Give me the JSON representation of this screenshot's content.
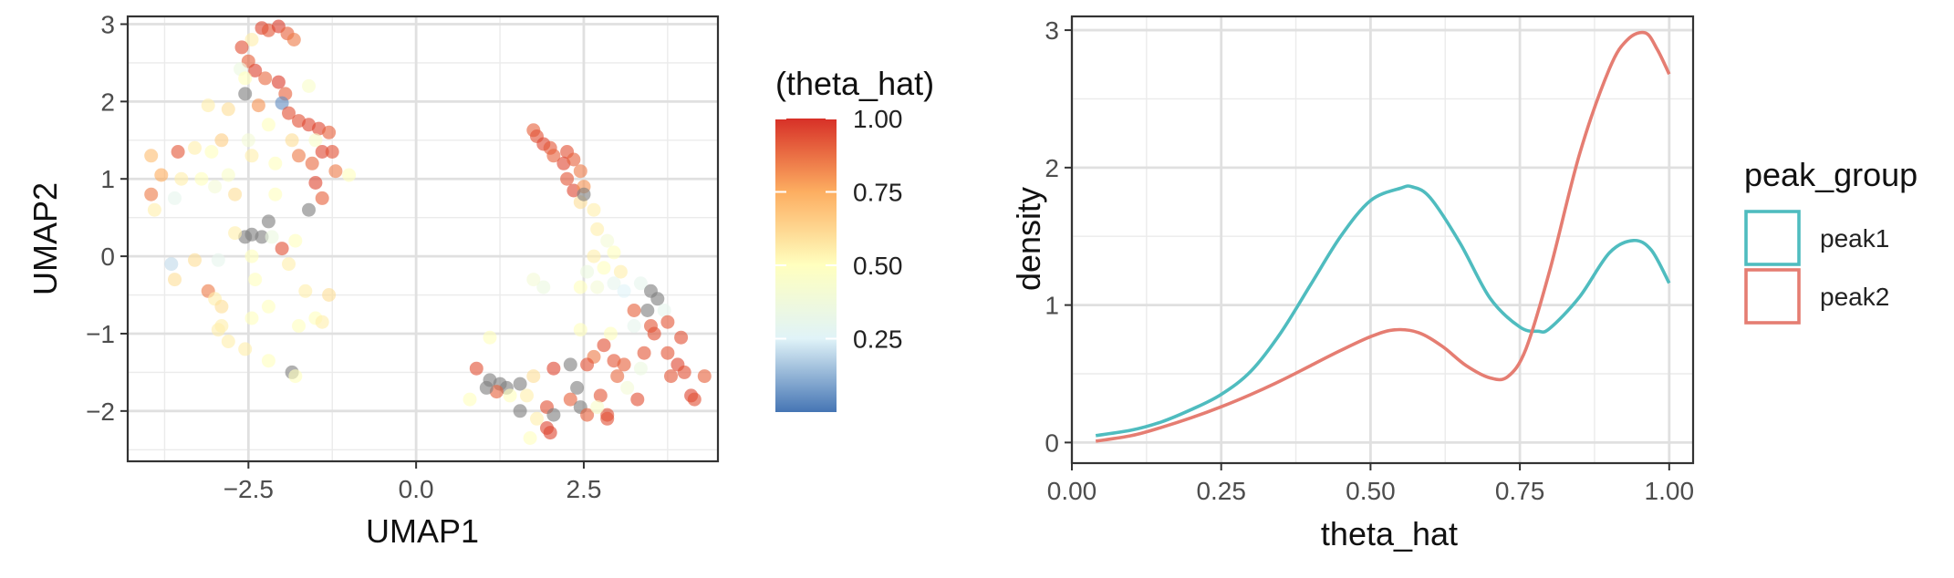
{
  "chart_data": [
    {
      "type": "scatter",
      "xlabel": "UMAP1",
      "ylabel": "UMAP2",
      "xlim": [
        -4.3,
        4.5
      ],
      "ylim": [
        -2.65,
        3.1
      ],
      "xticks": [
        -2.5,
        0.0,
        2.5
      ],
      "xtick_labels": [
        "−2.5",
        "0.0",
        "2.5"
      ],
      "yticks": [
        -2,
        -1,
        0,
        1,
        2,
        3
      ],
      "ytick_labels": [
        "−2",
        "−1",
        "0",
        "1",
        "2",
        "3"
      ],
      "grid": true,
      "legend_placement": "right",
      "colorbar": {
        "title": "(theta_hat)",
        "ticks": [
          0.25,
          0.5,
          0.75,
          1.0
        ],
        "tick_labels": [
          "0.25",
          "0.50",
          "0.75",
          "1.00"
        ],
        "range": [
          0.0,
          1.0
        ],
        "colors": [
          "#4575b4",
          "#e0f3f8",
          "#ffffbf",
          "#fdae61",
          "#d73027"
        ],
        "na_color": "#808080"
      },
      "points": [
        [
          -2.3,
          2.95,
          0.95
        ],
        [
          -2.2,
          2.92,
          0.92
        ],
        [
          -2.05,
          2.97,
          0.97
        ],
        [
          -1.92,
          2.88,
          0.9
        ],
        [
          -1.82,
          2.8,
          0.85
        ],
        [
          -2.45,
          2.8,
          0.55
        ],
        [
          -2.6,
          2.7,
          0.93
        ],
        [
          -2.5,
          2.52,
          0.9
        ],
        [
          -2.62,
          2.42,
          0.35
        ],
        [
          -2.4,
          2.4,
          0.96
        ],
        [
          -2.25,
          2.3,
          0.88
        ],
        [
          -2.55,
          2.3,
          0.5
        ],
        [
          -2.05,
          2.25,
          0.97
        ],
        [
          -1.95,
          2.1,
          0.9
        ],
        [
          -1.6,
          2.2,
          0.45
        ],
        [
          -2.55,
          2.1,
          null
        ],
        [
          -2.35,
          1.95,
          0.8
        ],
        [
          -2.0,
          1.98,
          0.05
        ],
        [
          -1.9,
          1.85,
          0.93
        ],
        [
          -1.75,
          1.75,
          0.93
        ],
        [
          -2.8,
          1.9,
          0.6
        ],
        [
          -3.1,
          1.95,
          0.55
        ],
        [
          -2.2,
          1.7,
          0.5
        ],
        [
          -1.6,
          1.7,
          0.95
        ],
        [
          -1.45,
          1.65,
          0.95
        ],
        [
          -1.3,
          1.6,
          0.9
        ],
        [
          -1.5,
          1.5,
          0.45
        ],
        [
          -1.85,
          1.5,
          0.6
        ],
        [
          -2.5,
          1.5,
          0.4
        ],
        [
          -2.9,
          1.5,
          0.65
        ],
        [
          -3.3,
          1.4,
          0.55
        ],
        [
          -3.55,
          1.35,
          0.92
        ],
        [
          -3.05,
          1.35,
          0.5
        ],
        [
          -3.95,
          1.3,
          0.7
        ],
        [
          -2.45,
          1.3,
          0.55
        ],
        [
          -1.75,
          1.3,
          0.85
        ],
        [
          -1.4,
          1.35,
          0.95
        ],
        [
          -1.25,
          1.35,
          0.93
        ],
        [
          -1.55,
          1.2,
          0.88
        ],
        [
          -2.1,
          1.2,
          0.5
        ],
        [
          -1.2,
          1.1,
          0.85
        ],
        [
          -1.0,
          1.05,
          0.5
        ],
        [
          -3.8,
          1.05,
          0.75
        ],
        [
          -3.5,
          1.0,
          0.55
        ],
        [
          -3.2,
          1.0,
          0.5
        ],
        [
          -2.8,
          1.05,
          0.45
        ],
        [
          -1.5,
          0.95,
          0.95
        ],
        [
          -3.0,
          0.9,
          0.4
        ],
        [
          -3.6,
          0.75,
          0.3
        ],
        [
          -3.95,
          0.8,
          0.85
        ],
        [
          -2.7,
          0.8,
          0.6
        ],
        [
          -1.4,
          0.75,
          0.9
        ],
        [
          -3.9,
          0.6,
          0.55
        ],
        [
          -2.1,
          0.8,
          0.5
        ],
        [
          -1.6,
          0.6,
          null
        ],
        [
          -2.2,
          0.45,
          null
        ],
        [
          -2.45,
          0.28,
          null
        ],
        [
          -2.3,
          0.25,
          null
        ],
        [
          -2.15,
          0.25,
          0.35
        ],
        [
          -2.55,
          0.25,
          null
        ],
        [
          -2.7,
          0.3,
          0.55
        ],
        [
          -1.8,
          0.2,
          0.5
        ],
        [
          -2.0,
          0.1,
          0.93
        ],
        [
          -2.45,
          0.0,
          0.5
        ],
        [
          -3.65,
          -0.1,
          0.2
        ],
        [
          -3.3,
          -0.05,
          0.6
        ],
        [
          -2.95,
          -0.05,
          0.3
        ],
        [
          -1.9,
          -0.1,
          0.55
        ],
        [
          -3.6,
          -0.3,
          0.6
        ],
        [
          -2.4,
          -0.3,
          0.5
        ],
        [
          -3.1,
          -0.45,
          0.85
        ],
        [
          -1.3,
          -0.5,
          0.6
        ],
        [
          -1.65,
          -0.45,
          0.55
        ],
        [
          -2.2,
          -0.65,
          0.5
        ],
        [
          -3.0,
          -0.55,
          0.55
        ],
        [
          -2.9,
          -0.65,
          0.6
        ],
        [
          -1.5,
          -0.8,
          0.5
        ],
        [
          -1.4,
          -0.85,
          0.55
        ],
        [
          -2.45,
          -0.8,
          0.5
        ],
        [
          -1.75,
          -0.9,
          0.5
        ],
        [
          -2.9,
          -0.9,
          0.55
        ],
        [
          -2.8,
          -1.1,
          0.55
        ],
        [
          -2.55,
          -1.2,
          0.55
        ],
        [
          -2.2,
          -1.35,
          0.5
        ],
        [
          -1.85,
          -1.5,
          null
        ],
        [
          -1.8,
          -1.55,
          0.5
        ],
        [
          -2.95,
          -0.95,
          0.55
        ],
        [
          1.75,
          1.63,
          0.9
        ],
        [
          1.8,
          1.55,
          0.93
        ],
        [
          1.9,
          1.45,
          0.95
        ],
        [
          2.0,
          1.4,
          0.92
        ],
        [
          2.05,
          1.3,
          0.9
        ],
        [
          2.25,
          1.35,
          0.93
        ],
        [
          2.2,
          1.2,
          0.95
        ],
        [
          2.35,
          1.25,
          0.9
        ],
        [
          2.45,
          1.1,
          0.85
        ],
        [
          2.25,
          1.0,
          0.92
        ],
        [
          2.35,
          0.85,
          0.95
        ],
        [
          2.5,
          0.9,
          0.8
        ],
        [
          2.45,
          0.7,
          0.6
        ],
        [
          2.5,
          0.8,
          null
        ],
        [
          2.65,
          0.6,
          0.55
        ],
        [
          2.7,
          0.35,
          0.55
        ],
        [
          2.85,
          0.2,
          0.4
        ],
        [
          2.95,
          0.05,
          0.5
        ],
        [
          2.65,
          0.0,
          0.55
        ],
        [
          2.8,
          -0.15,
          0.5
        ],
        [
          3.05,
          -0.2,
          0.55
        ],
        [
          2.55,
          -0.2,
          0.35
        ],
        [
          2.95,
          -0.35,
          0.3
        ],
        [
          3.35,
          -0.35,
          0.3
        ],
        [
          2.45,
          -0.4,
          0.5
        ],
        [
          2.7,
          -0.4,
          0.4
        ],
        [
          3.1,
          -0.45,
          0.25
        ],
        [
          3.5,
          -0.45,
          null
        ],
        [
          3.6,
          -0.55,
          null
        ],
        [
          3.45,
          -0.7,
          null
        ],
        [
          3.25,
          -0.7,
          0.9
        ],
        [
          3.7,
          -0.7,
          0.3
        ],
        [
          3.75,
          -0.85,
          0.92
        ],
        [
          3.5,
          -0.9,
          0.92
        ],
        [
          3.25,
          -0.9,
          0.3
        ],
        [
          2.45,
          -0.95,
          0.5
        ],
        [
          2.9,
          -1.0,
          0.5
        ],
        [
          3.55,
          -1.0,
          0.93
        ],
        [
          3.95,
          -1.05,
          0.93
        ],
        [
          2.8,
          -1.15,
          0.93
        ],
        [
          3.4,
          -1.25,
          0.92
        ],
        [
          3.75,
          -1.25,
          0.92
        ],
        [
          3.9,
          -1.4,
          0.95
        ],
        [
          2.65,
          -1.3,
          0.85
        ],
        [
          2.95,
          -1.35,
          0.92
        ],
        [
          3.1,
          -1.4,
          0.9
        ],
        [
          2.3,
          -1.4,
          null
        ],
        [
          2.55,
          -1.4,
          0.93
        ],
        [
          3.35,
          -1.45,
          0.35
        ],
        [
          3.8,
          -1.55,
          0.92
        ],
        [
          4.0,
          -1.5,
          0.93
        ],
        [
          4.3,
          -1.55,
          0.9
        ],
        [
          2.05,
          -1.45,
          0.95
        ],
        [
          3.0,
          -1.55,
          0.88
        ],
        [
          1.75,
          -1.55,
          0.6
        ],
        [
          1.1,
          -1.6,
          null
        ],
        [
          0.9,
          -1.45,
          0.93
        ],
        [
          1.25,
          -1.65,
          null
        ],
        [
          1.35,
          -1.7,
          null
        ],
        [
          1.55,
          -1.65,
          null
        ],
        [
          1.2,
          -1.75,
          0.9
        ],
        [
          1.4,
          -1.8,
          0.5
        ],
        [
          1.65,
          -1.8,
          0.55
        ],
        [
          1.05,
          -1.7,
          null
        ],
        [
          2.4,
          -1.7,
          null
        ],
        [
          2.3,
          -1.85,
          0.9
        ],
        [
          2.75,
          -1.8,
          0.92
        ],
        [
          3.3,
          -1.85,
          0.93
        ],
        [
          4.1,
          -1.8,
          0.95
        ],
        [
          4.15,
          -1.85,
          0.93
        ],
        [
          1.55,
          -2.0,
          null
        ],
        [
          1.95,
          -1.95,
          0.93
        ],
        [
          2.05,
          -2.05,
          null
        ],
        [
          2.45,
          -1.95,
          null
        ],
        [
          2.55,
          -2.05,
          0.9
        ],
        [
          2.85,
          -2.05,
          0.93
        ],
        [
          2.85,
          -2.1,
          0.93
        ],
        [
          1.95,
          -2.22,
          0.95
        ],
        [
          2.0,
          -2.28,
          0.95
        ],
        [
          1.7,
          -2.35,
          0.5
        ],
        [
          1.8,
          -2.1,
          0.55
        ],
        [
          2.7,
          -1.95,
          0.45
        ],
        [
          3.15,
          -1.7,
          0.4
        ],
        [
          1.1,
          -1.05,
          0.5
        ],
        [
          0.8,
          -1.85,
          0.5
        ],
        [
          1.9,
          -0.4,
          0.35
        ],
        [
          1.75,
          -0.3,
          0.4
        ]
      ]
    },
    {
      "type": "line",
      "xlabel": "theta_hat",
      "ylabel": "density",
      "xlim": [
        0.0,
        1.04
      ],
      "ylim": [
        -0.15,
        3.1
      ],
      "xticks": [
        0.0,
        0.25,
        0.5,
        0.75,
        1.0
      ],
      "xtick_labels": [
        "0.00",
        "0.25",
        "0.50",
        "0.75",
        "1.00"
      ],
      "yticks": [
        0,
        1,
        2,
        3
      ],
      "ytick_labels": [
        "0",
        "1",
        "2",
        "3"
      ],
      "grid": true,
      "legend_title": "peak_group",
      "legend_placement": "right",
      "series": [
        {
          "name": "peak1",
          "color": "#4fbcbf",
          "x": [
            0.04,
            0.1,
            0.15,
            0.2,
            0.25,
            0.3,
            0.35,
            0.4,
            0.45,
            0.5,
            0.55,
            0.57,
            0.6,
            0.65,
            0.7,
            0.75,
            0.78,
            0.8,
            0.85,
            0.9,
            0.94,
            0.97,
            1.0
          ],
          "y": [
            0.05,
            0.09,
            0.15,
            0.24,
            0.35,
            0.52,
            0.8,
            1.15,
            1.5,
            1.76,
            1.85,
            1.86,
            1.78,
            1.45,
            1.05,
            0.84,
            0.81,
            0.83,
            1.06,
            1.38,
            1.47,
            1.4,
            1.16
          ]
        },
        {
          "name": "peak2",
          "color": "#e57d72",
          "x": [
            0.04,
            0.1,
            0.15,
            0.2,
            0.25,
            0.3,
            0.35,
            0.4,
            0.45,
            0.5,
            0.54,
            0.58,
            0.62,
            0.66,
            0.7,
            0.73,
            0.76,
            0.8,
            0.85,
            0.9,
            0.93,
            0.96,
            0.98,
            1.0
          ],
          "y": [
            0.01,
            0.05,
            0.11,
            0.18,
            0.26,
            0.35,
            0.45,
            0.56,
            0.67,
            0.77,
            0.82,
            0.8,
            0.7,
            0.56,
            0.47,
            0.48,
            0.68,
            1.25,
            2.1,
            2.72,
            2.93,
            2.98,
            2.86,
            2.68
          ]
        }
      ]
    }
  ]
}
